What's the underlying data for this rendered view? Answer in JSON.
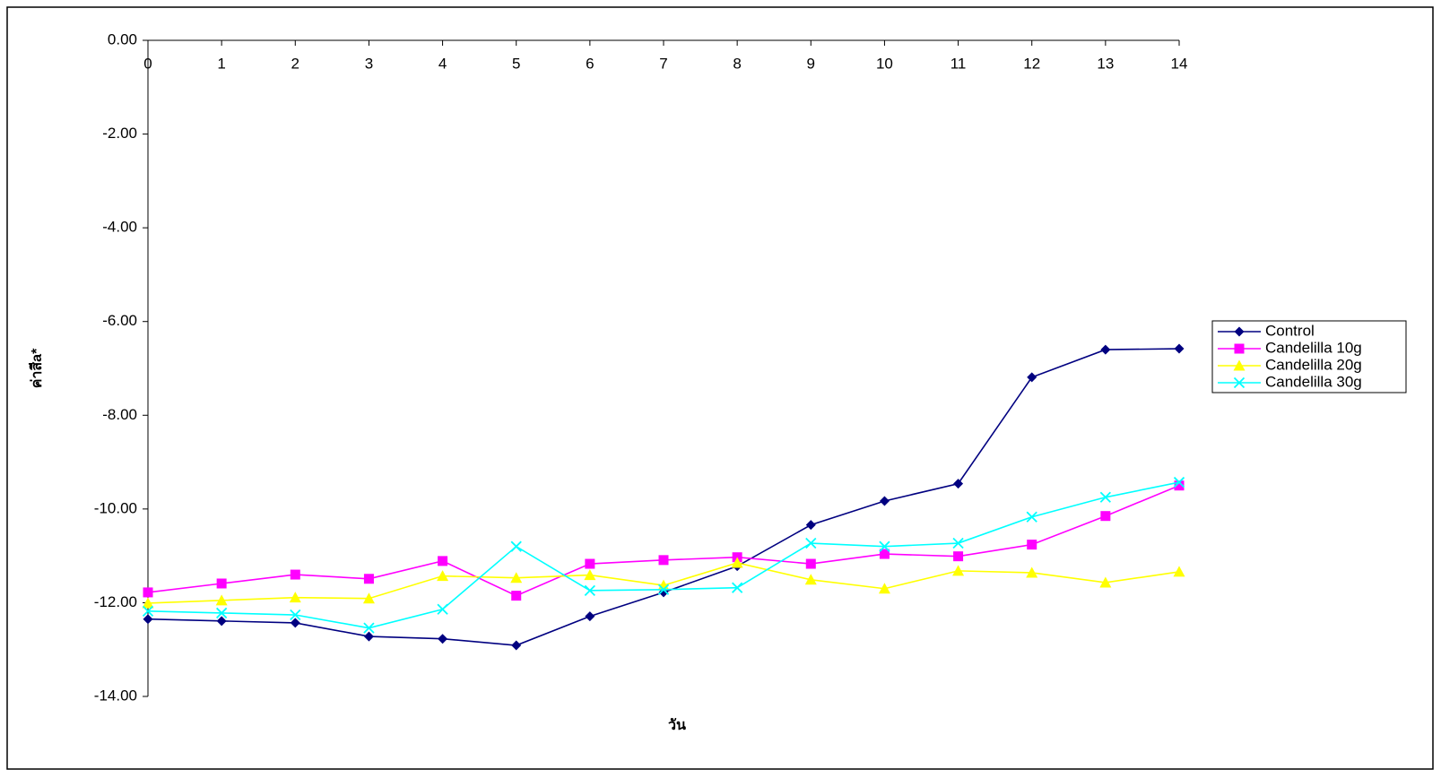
{
  "chart_data": {
    "type": "line",
    "x_label": "วัน",
    "y_label": "ค่าสีa*",
    "x": [
      0,
      1,
      2,
      3,
      4,
      5,
      6,
      7,
      8,
      9,
      10,
      11,
      12,
      13,
      14
    ],
    "xlim": [
      0,
      14
    ],
    "ylim": [
      -14,
      0
    ],
    "yticks": [
      {
        "value": 0,
        "label": "0.00"
      },
      {
        "value": -2,
        "label": "-2.00"
      },
      {
        "value": -4,
        "label": "-4.00"
      },
      {
        "value": -6,
        "label": "-6.00"
      },
      {
        "value": -8,
        "label": "-8.00"
      },
      {
        "value": -10,
        "label": "-10.00"
      },
      {
        "value": -12,
        "label": "-12.00"
      },
      {
        "value": -14,
        "label": "-14.00"
      }
    ],
    "legend": "right",
    "series": [
      {
        "name": "Control",
        "color": "#000080",
        "marker": "diamond",
        "values": [
          -12.35,
          -12.39,
          -12.43,
          -12.72,
          -12.77,
          -12.91,
          -12.29,
          -11.78,
          -11.22,
          -10.34,
          -9.83,
          -9.46,
          -7.19,
          -6.6,
          -6.58
        ]
      },
      {
        "name": "Candelilla 10g",
        "color": "#ff00ff",
        "marker": "square",
        "values": [
          -11.78,
          -11.59,
          -11.4,
          -11.49,
          -11.11,
          -11.85,
          -11.17,
          -11.09,
          -11.03,
          -11.17,
          -10.96,
          -11.01,
          -10.76,
          -10.15,
          -9.5
        ]
      },
      {
        "name": "Candelilla 20g",
        "color": "#ffff00",
        "marker": "triangle",
        "values": [
          -12.01,
          -11.95,
          -11.89,
          -11.91,
          -11.43,
          -11.47,
          -11.41,
          -11.63,
          -11.15,
          -11.51,
          -11.7,
          -11.32,
          -11.36,
          -11.57,
          -11.34
        ]
      },
      {
        "name": "Candelilla 30g",
        "color": "#00ffff",
        "marker": "x",
        "values": [
          -12.18,
          -12.22,
          -12.26,
          -12.54,
          -12.14,
          -10.8,
          -11.74,
          -11.72,
          -11.68,
          -10.73,
          -10.8,
          -10.73,
          -10.17,
          -9.75,
          -9.43
        ]
      }
    ]
  }
}
